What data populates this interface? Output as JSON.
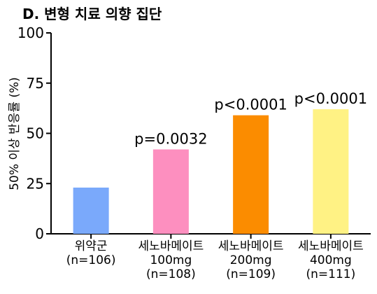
{
  "chart_data": {
    "type": "bar",
    "title": "D. 변형 치료 의향 집단",
    "ylabel": "50% 이상 반응률 (%)",
    "xlabel": "",
    "ylim": [
      0,
      100
    ],
    "yticks": [
      "0",
      "25",
      "50",
      "75",
      "100"
    ],
    "grid": false,
    "categories": [
      {
        "lines": [
          "위약군",
          "(n=106)"
        ]
      },
      {
        "lines": [
          "세노바메이트",
          "100mg",
          "(n=108)"
        ]
      },
      {
        "lines": [
          "세노바메이트",
          "200mg",
          "(n=109)"
        ]
      },
      {
        "lines": [
          "세노바메이트",
          "400mg",
          "(n=111)"
        ]
      }
    ],
    "values": [
      23,
      42,
      59,
      62
    ],
    "bar_labels": [
      "",
      "p=0.0032",
      "p<0.0001",
      "p<0.0001"
    ],
    "colors": [
      "#7aa9fb",
      "#fd8fbf",
      "#fb8c00",
      "#fff284"
    ]
  }
}
